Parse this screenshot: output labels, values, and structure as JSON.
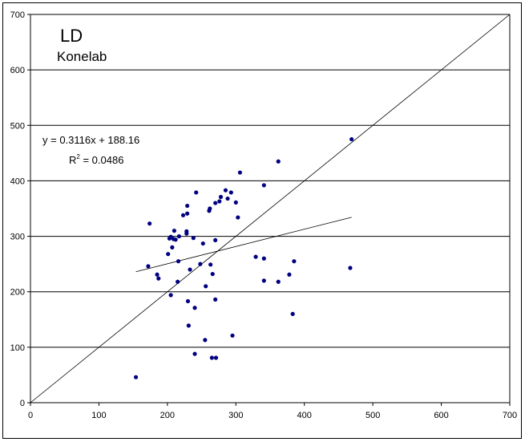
{
  "chart_data": {
    "type": "scatter",
    "title": "LD",
    "subtitle": "Konelab",
    "xlabel": "",
    "ylabel": "",
    "xlim": [
      0,
      700
    ],
    "ylim": [
      0,
      700
    ],
    "x_ticks": [
      0,
      100,
      200,
      300,
      400,
      500,
      600,
      700
    ],
    "y_ticks": [
      0,
      100,
      200,
      300,
      400,
      500,
      600,
      700
    ],
    "grid": "horizontal",
    "legend": "none",
    "colors": {
      "points": "#000080",
      "lines": "#000000"
    },
    "trendline": {
      "equation_label": "y = 0.3116x + 188.16",
      "r2_prefix": "R",
      "r2_exp": "2",
      "r2_value": " = 0.0486",
      "slope": 0.3116,
      "intercept": 188.16,
      "x_range": [
        154,
        469
      ]
    },
    "identity_line": {
      "from": [
        0,
        0
      ],
      "to": [
        700,
        700
      ]
    },
    "series": [
      {
        "points": [
          [
            154,
            46
          ],
          [
            174,
            323
          ],
          [
            172,
            246
          ],
          [
            185,
            231
          ],
          [
            187,
            224
          ],
          [
            201,
            268
          ],
          [
            203,
            296
          ],
          [
            205,
            299
          ],
          [
            205,
            194
          ],
          [
            207,
            280
          ],
          [
            209,
            295
          ],
          [
            212,
            294
          ],
          [
            210,
            310
          ],
          [
            215,
            218
          ],
          [
            217,
            300
          ],
          [
            216,
            255
          ],
          [
            223,
            338
          ],
          [
            229,
            355
          ],
          [
            229,
            341
          ],
          [
            228,
            309
          ],
          [
            228,
            305
          ],
          [
            230,
            183
          ],
          [
            231,
            139
          ],
          [
            233,
            240
          ],
          [
            238,
            297
          ],
          [
            240,
            171
          ],
          [
            240,
            88
          ],
          [
            242,
            379
          ],
          [
            248,
            250
          ],
          [
            252,
            287
          ],
          [
            255,
            113
          ],
          [
            256,
            210
          ],
          [
            261,
            346
          ],
          [
            262,
            350
          ],
          [
            263,
            249
          ],
          [
            265,
            81
          ],
          [
            266,
            232
          ],
          [
            270,
            360
          ],
          [
            271,
            81
          ],
          [
            270,
            293
          ],
          [
            270,
            186
          ],
          [
            276,
            363
          ],
          [
            278,
            371
          ],
          [
            285,
            383
          ],
          [
            288,
            368
          ],
          [
            293,
            379
          ],
          [
            295,
            121
          ],
          [
            300,
            361
          ],
          [
            303,
            334
          ],
          [
            306,
            415
          ],
          [
            329,
            263
          ],
          [
            341,
            392
          ],
          [
            341,
            260
          ],
          [
            341,
            220
          ],
          [
            362,
            435
          ],
          [
            362,
            218
          ],
          [
            378,
            231
          ],
          [
            383,
            160
          ],
          [
            385,
            255
          ],
          [
            467,
            243
          ],
          [
            469,
            475
          ]
        ]
      }
    ]
  }
}
